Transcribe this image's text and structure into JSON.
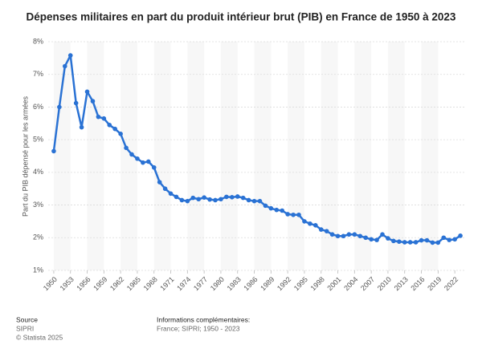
{
  "chart_data": {
    "type": "line",
    "title": "Dépenses militaires en part du produit intérieur brut (PIB) en France de 1950 à 2023",
    "y_label": "Part du PIB dépensé pour les armées",
    "x": [
      1950,
      1951,
      1952,
      1953,
      1954,
      1955,
      1956,
      1957,
      1958,
      1959,
      1960,
      1961,
      1962,
      1963,
      1964,
      1965,
      1966,
      1967,
      1968,
      1969,
      1970,
      1971,
      1972,
      1973,
      1974,
      1975,
      1976,
      1977,
      1978,
      1979,
      1980,
      1981,
      1982,
      1983,
      1984,
      1985,
      1986,
      1987,
      1988,
      1989,
      1990,
      1991,
      1992,
      1993,
      1994,
      1995,
      1996,
      1997,
      1998,
      1999,
      2000,
      2001,
      2002,
      2003,
      2004,
      2005,
      2006,
      2007,
      2008,
      2009,
      2010,
      2011,
      2012,
      2013,
      2014,
      2015,
      2016,
      2017,
      2018,
      2019,
      2020,
      2021,
      2022,
      2023
    ],
    "series": [
      {
        "color": "#2a72d4",
        "values": [
          4.65,
          6.0,
          7.25,
          7.58,
          6.12,
          5.38,
          6.47,
          6.18,
          5.7,
          5.65,
          5.45,
          5.33,
          5.18,
          4.75,
          4.55,
          4.42,
          4.3,
          4.33,
          4.15,
          3.7,
          3.5,
          3.35,
          3.25,
          3.15,
          3.12,
          3.22,
          3.18,
          3.23,
          3.17,
          3.15,
          3.18,
          3.25,
          3.24,
          3.26,
          3.22,
          3.15,
          3.12,
          3.12,
          2.98,
          2.9,
          2.85,
          2.83,
          2.72,
          2.7,
          2.7,
          2.5,
          2.43,
          2.38,
          2.25,
          2.2,
          2.1,
          2.05,
          2.05,
          2.1,
          2.1,
          2.05,
          2.0,
          1.95,
          1.93,
          2.1,
          1.98,
          1.9,
          1.88,
          1.86,
          1.86,
          1.86,
          1.92,
          1.92,
          1.85,
          1.85,
          2.0,
          1.93,
          1.95,
          2.06
        ]
      }
    ],
    "xlim": [
      1949,
      2024
    ],
    "xticks": [
      1950,
      1953,
      1956,
      1959,
      1962,
      1965,
      1968,
      1971,
      1974,
      1977,
      1980,
      1983,
      1986,
      1989,
      1992,
      1995,
      1998,
      2001,
      2004,
      2007,
      2010,
      2013,
      2016,
      2019,
      2022
    ],
    "ylim": [
      1,
      8
    ],
    "yticks": [
      {
        "value": 1,
        "label": "1%"
      },
      {
        "value": 2,
        "label": "2%"
      },
      {
        "value": 3,
        "label": "3%"
      },
      {
        "value": 4,
        "label": "4%"
      },
      {
        "value": 5,
        "label": "5%"
      },
      {
        "value": 6,
        "label": "6%"
      },
      {
        "value": 7,
        "label": "7%"
      },
      {
        "value": 8,
        "label": "8%"
      }
    ],
    "grid": true,
    "footer": {
      "source_heading": "Source",
      "source": "SIPRI",
      "copyright": "© Statista 2025",
      "info_heading": "Informations complémentaires:",
      "info": "France; SIPRI; 1950 - 2023"
    }
  }
}
